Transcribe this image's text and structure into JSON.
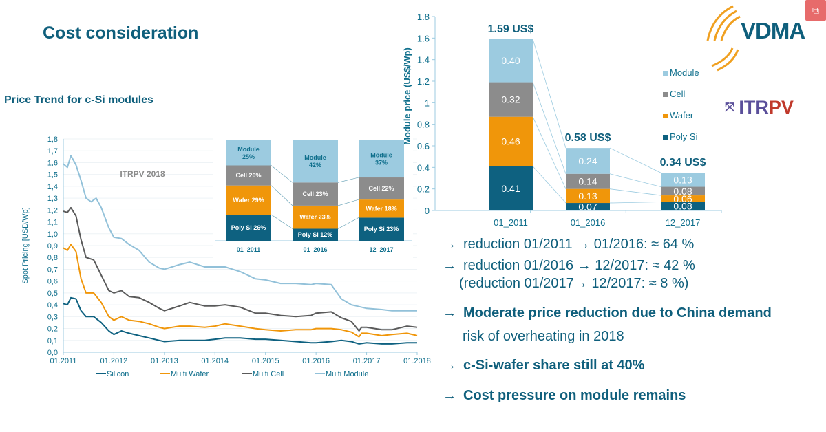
{
  "header": {
    "title": "Cost consideration",
    "subtitle": "Price Trend for c-Si modules",
    "logos": {
      "vdma": "VDMA",
      "itrpv_part1": "ITR",
      "itrpv_part2": "PV"
    },
    "corner_button_icon": "export-icon"
  },
  "colors": {
    "polysi": "#0e6180",
    "wafer": "#f0960a",
    "cell": "#8c8c8c",
    "module": "#9ccbe0",
    "text": "#0f5f7c",
    "axis": "#9ccbe0"
  },
  "bullets": [
    {
      "arrow": "→",
      "text": "reduction 01/2011 → 01/2016:  ≈ 64 %",
      "bold": false
    },
    {
      "arrow": "→",
      "text": "reduction 01/2016 → 12/2017:  ≈ 42 %",
      "bold": false
    },
    {
      "arrow": "",
      "text": "(reduction 01/2017→ 12/2017:  ≈   8 %)",
      "bold": false
    },
    {
      "arrow": "→",
      "text": "Moderate price reduction due to China demand",
      "bold": true
    },
    {
      "arrow": "",
      "text": "risk of overheating in 2018",
      "bold": false
    },
    {
      "arrow": "→",
      "text": "c-Si-wafer share still at 40%",
      "bold": true
    },
    {
      "arrow": "→",
      "text": "Cost pressure on module remains",
      "bold": true
    }
  ],
  "chart_data": [
    {
      "id": "spot-price-trend",
      "type": "line",
      "title": "",
      "annotation": "ITRPV 2018",
      "xlabel": "",
      "ylabel": "Spot Pricing [USD/Wp]",
      "xlim": [
        2011.0,
        2018.0
      ],
      "ylim": [
        0.0,
        1.8
      ],
      "yticks": [
        "0,0",
        "0,1",
        "0,2",
        "0,3",
        "0,4",
        "0,5",
        "0,6",
        "0,7",
        "0,8",
        "0,9",
        "1,0",
        "1,1",
        "1,2",
        "1,3",
        "1,4",
        "1,5",
        "1,6",
        "1,7",
        "1,8"
      ],
      "xticks": [
        "01.2011",
        "01.2012",
        "01.2013",
        "01.2014",
        "01.2015",
        "01.2016",
        "01.2017",
        "01.2018"
      ],
      "grid": true,
      "legend_position": "bottom",
      "series": [
        {
          "name": "Silicon",
          "color": "#0e6180",
          "x": [
            2011.0,
            2011.08,
            2011.15,
            2011.25,
            2011.35,
            2011.45,
            2011.6,
            2011.75,
            2011.9,
            2012.0,
            2012.15,
            2012.3,
            2012.5,
            2012.7,
            2012.9,
            2013.0,
            2013.3,
            2013.5,
            2013.8,
            2014.0,
            2014.2,
            2014.5,
            2014.8,
            2015.0,
            2015.3,
            2015.6,
            2015.9,
            2016.0,
            2016.3,
            2016.5,
            2016.7,
            2016.85,
            2017.0,
            2017.3,
            2017.5,
            2017.8,
            2018.0
          ],
          "y": [
            0.41,
            0.4,
            0.46,
            0.45,
            0.35,
            0.3,
            0.3,
            0.25,
            0.18,
            0.15,
            0.18,
            0.16,
            0.14,
            0.12,
            0.1,
            0.09,
            0.1,
            0.1,
            0.1,
            0.11,
            0.12,
            0.12,
            0.11,
            0.11,
            0.1,
            0.09,
            0.08,
            0.08,
            0.09,
            0.1,
            0.09,
            0.07,
            0.08,
            0.07,
            0.07,
            0.08,
            0.08
          ]
        },
        {
          "name": "Multi Wafer",
          "color": "#f0960a",
          "x": [
            2011.0,
            2011.08,
            2011.15,
            2011.25,
            2011.35,
            2011.45,
            2011.6,
            2011.75,
            2011.9,
            2012.0,
            2012.15,
            2012.3,
            2012.5,
            2012.7,
            2012.9,
            2013.0,
            2013.3,
            2013.5,
            2013.8,
            2014.0,
            2014.2,
            2014.5,
            2014.8,
            2015.0,
            2015.3,
            2015.6,
            2015.9,
            2016.0,
            2016.3,
            2016.5,
            2016.7,
            2016.85,
            2016.9,
            2017.0,
            2017.3,
            2017.5,
            2017.8,
            2018.0
          ],
          "y": [
            0.88,
            0.86,
            0.91,
            0.85,
            0.62,
            0.5,
            0.5,
            0.42,
            0.3,
            0.27,
            0.3,
            0.27,
            0.26,
            0.24,
            0.21,
            0.2,
            0.22,
            0.22,
            0.21,
            0.22,
            0.24,
            0.22,
            0.2,
            0.19,
            0.18,
            0.19,
            0.19,
            0.2,
            0.2,
            0.19,
            0.17,
            0.13,
            0.16,
            0.16,
            0.14,
            0.15,
            0.16,
            0.14
          ]
        },
        {
          "name": "Multi Cell",
          "color": "#5a5a5a",
          "x": [
            2011.0,
            2011.08,
            2011.15,
            2011.25,
            2011.35,
            2011.45,
            2011.6,
            2011.75,
            2011.9,
            2012.0,
            2012.15,
            2012.3,
            2012.5,
            2012.7,
            2012.9,
            2013.0,
            2013.3,
            2013.5,
            2013.8,
            2014.0,
            2014.2,
            2014.5,
            2014.8,
            2015.0,
            2015.3,
            2015.6,
            2015.9,
            2016.0,
            2016.3,
            2016.5,
            2016.7,
            2016.85,
            2016.9,
            2017.0,
            2017.3,
            2017.5,
            2017.8,
            2018.0
          ],
          "y": [
            1.19,
            1.18,
            1.22,
            1.15,
            0.95,
            0.8,
            0.78,
            0.65,
            0.52,
            0.5,
            0.52,
            0.47,
            0.46,
            0.42,
            0.37,
            0.35,
            0.39,
            0.42,
            0.39,
            0.39,
            0.4,
            0.38,
            0.33,
            0.33,
            0.31,
            0.3,
            0.31,
            0.33,
            0.34,
            0.29,
            0.26,
            0.18,
            0.21,
            0.21,
            0.19,
            0.19,
            0.22,
            0.21
          ]
        },
        {
          "name": "Multi Module",
          "color": "#92c1d9",
          "x": [
            2011.0,
            2011.08,
            2011.15,
            2011.25,
            2011.35,
            2011.45,
            2011.55,
            2011.65,
            2011.75,
            2011.9,
            2012.0,
            2012.15,
            2012.3,
            2012.5,
            2012.7,
            2012.9,
            2013.0,
            2013.3,
            2013.5,
            2013.8,
            2014.0,
            2014.2,
            2014.5,
            2014.8,
            2015.0,
            2015.3,
            2015.6,
            2015.9,
            2016.0,
            2016.3,
            2016.5,
            2016.7,
            2016.8,
            2017.0,
            2017.3,
            2017.5,
            2017.8,
            2018.0
          ],
          "y": [
            1.59,
            1.56,
            1.66,
            1.58,
            1.45,
            1.3,
            1.27,
            1.3,
            1.22,
            1.05,
            0.97,
            0.96,
            0.91,
            0.86,
            0.76,
            0.71,
            0.7,
            0.74,
            0.76,
            0.72,
            0.72,
            0.72,
            0.68,
            0.62,
            0.61,
            0.58,
            0.58,
            0.57,
            0.58,
            0.57,
            0.45,
            0.4,
            0.39,
            0.37,
            0.36,
            0.35,
            0.35,
            0.35
          ]
        }
      ]
    },
    {
      "id": "cost-share-inset",
      "type": "bar",
      "stacked": true,
      "title": "",
      "categories": [
        "01_2011",
        "01_2016",
        "12_2017"
      ],
      "ylim": [
        0,
        100
      ],
      "series": [
        {
          "name": "Poly Si",
          "color": "#0e6180",
          "values": [
            26,
            12,
            23
          ],
          "labels": [
            "Poly Si 26%",
            "Poly Si 12%",
            "Poly Si 23%"
          ]
        },
        {
          "name": "Wafer",
          "color": "#f0960a",
          "values": [
            29,
            23,
            18
          ],
          "labels": [
            "Wafer 29%",
            "Wafer 23%",
            "Wafer 18%"
          ]
        },
        {
          "name": "Cell",
          "color": "#8c8c8c",
          "values": [
            20,
            23,
            22
          ],
          "labels": [
            "Cell 20%",
            "Cell 23%",
            "Cell 22%"
          ]
        },
        {
          "name": "Module",
          "color": "#9ccbe0",
          "values": [
            25,
            42,
            37
          ],
          "labels": [
            "Module\n25%",
            "Module\n42%",
            "Module\n37%"
          ]
        }
      ]
    },
    {
      "id": "module-price-breakdown",
      "type": "bar",
      "stacked": true,
      "title": "",
      "xlabel": "",
      "ylabel": "Module price (US$/Wp)",
      "ylim": [
        0,
        1.8
      ],
      "yticks": [
        "0",
        "0.2",
        "0.4",
        "0.6",
        "0.8",
        "1",
        "1.2",
        "1.4",
        "1.6",
        "1.8"
      ],
      "categories": [
        "01_2011",
        "01_2016",
        "12_2017"
      ],
      "totals": [
        "1.59 US$",
        "0.58 US$",
        "0.34 US$"
      ],
      "legend_position": "right",
      "legend": [
        "Module",
        "Cell",
        "Wafer",
        "Poly Si"
      ],
      "series": [
        {
          "name": "Poly Si",
          "color": "#0e6180",
          "values": [
            0.41,
            0.07,
            0.08
          ],
          "labels": [
            "0.41",
            "0.07",
            "0.08"
          ]
        },
        {
          "name": "Wafer",
          "color": "#f0960a",
          "values": [
            0.46,
            0.13,
            0.06
          ],
          "labels": [
            "0.46",
            "0.13",
            "0.06"
          ]
        },
        {
          "name": "Cell",
          "color": "#8c8c8c",
          "values": [
            0.32,
            0.14,
            0.08
          ],
          "labels": [
            "0.32",
            "0.14",
            "0.08"
          ]
        },
        {
          "name": "Module",
          "color": "#9ccbe0",
          "values": [
            0.4,
            0.24,
            0.13
          ],
          "labels": [
            "0.40",
            "0.24",
            "0.13"
          ]
        }
      ]
    }
  ]
}
